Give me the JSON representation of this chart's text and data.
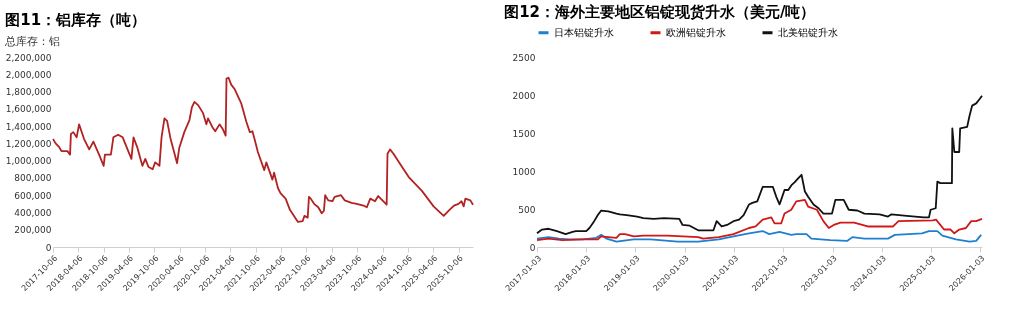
{
  "chart_data": [
    {
      "type": "line",
      "title": "图11：铝库存（吨）",
      "subtitle": "总库存：铝",
      "color": "#b22222",
      "x": [
        "2017-10-06",
        "2017-10-25",
        "2017-11-18",
        "2017-12-06",
        "2018-01-18",
        "2018-02-06",
        "2018-02-12",
        "2018-03-01",
        "2018-03-25",
        "2018-04-12",
        "2018-05-18",
        "2018-06-24",
        "2018-07-24",
        "2018-09-03",
        "2018-10-06",
        "2018-10-15",
        "2018-11-27",
        "2018-12-15",
        "2019-01-18",
        "2019-02-20",
        "2019-03-27",
        "2019-04-24",
        "2019-05-09",
        "2019-06-06",
        "2019-07-12",
        "2019-08-02",
        "2019-08-24",
        "2019-09-24",
        "2019-10-12",
        "2019-11-12",
        "2019-11-27",
        "2019-12-18",
        "2020-01-06",
        "2020-01-30",
        "2020-03-18",
        "2020-04-03",
        "2020-05-09",
        "2020-06-15",
        "2020-07-03",
        "2020-07-21",
        "2020-08-18",
        "2020-09-21",
        "2020-10-15",
        "2020-10-27",
        "2020-11-30",
        "2020-12-18",
        "2021-01-18",
        "2021-02-12",
        "2021-03-03",
        "2021-03-09",
        "2021-03-24",
        "2021-04-12",
        "2021-05-06",
        "2021-06-24",
        "2021-07-30",
        "2021-08-24",
        "2021-09-12",
        "2021-09-27",
        "2021-10-21",
        "2021-12-06",
        "2021-12-21",
        "2022-02-03",
        "2022-02-15",
        "2022-03-15",
        "2022-04-03",
        "2022-05-09",
        "2022-06-09",
        "2022-08-06",
        "2022-09-09",
        "2022-09-21",
        "2022-10-15",
        "2022-10-24",
        "2022-11-06",
        "2022-11-30",
        "2022-12-30",
        "2023-01-24",
        "2023-02-09",
        "2023-02-18",
        "2023-03-12",
        "2023-04-12",
        "2023-04-27",
        "2023-06-12",
        "2023-07-09",
        "2023-08-27",
        "2023-10-03",
        "2023-11-21",
        "2023-12-15",
        "2024-01-09",
        "2024-02-12",
        "2024-03-06",
        "2024-05-06",
        "2024-05-12",
        "2024-05-30",
        "2024-06-24",
        "2024-08-24",
        "2024-10-12",
        "2025-01-15",
        "2025-04-09",
        "2025-06-21",
        "2025-07-27",
        "2025-09-03",
        "2025-10-06",
        "2025-10-27",
        "2025-11-12",
        "2025-11-24",
        "2025-12-30",
        "2026-01-18"
      ],
      "values": [
        1250000,
        1200000,
        1160000,
        1110000,
        1110000,
        1070000,
        1310000,
        1330000,
        1270000,
        1420000,
        1250000,
        1130000,
        1220000,
        1070000,
        940000,
        1070000,
        1070000,
        1270000,
        1300000,
        1270000,
        1130000,
        1020000,
        1270000,
        1150000,
        940000,
        1020000,
        930000,
        900000,
        980000,
        940000,
        1270000,
        1490000,
        1460000,
        1260000,
        970000,
        1150000,
        1330000,
        1470000,
        1620000,
        1680000,
        1640000,
        1550000,
        1420000,
        1490000,
        1380000,
        1340000,
        1420000,
        1360000,
        1290000,
        1950000,
        1960000,
        1880000,
        1830000,
        1660000,
        1450000,
        1330000,
        1340000,
        1250000,
        1100000,
        890000,
        980000,
        780000,
        860000,
        680000,
        620000,
        560000,
        430000,
        290000,
        300000,
        360000,
        340000,
        580000,
        560000,
        500000,
        460000,
        390000,
        420000,
        600000,
        540000,
        530000,
        580000,
        600000,
        540000,
        510000,
        500000,
        480000,
        460000,
        560000,
        530000,
        590000,
        490000,
        1080000,
        1130000,
        1080000,
        930000,
        810000,
        650000,
        470000,
        360000,
        420000,
        480000,
        500000,
        530000,
        470000,
        560000,
        540000,
        490000
      ],
      "xlim": [
        "2017-10-06",
        "2026-01-18"
      ],
      "xticks": [
        "2017-10-06",
        "2018-04-06",
        "2018-10-06",
        "2019-04-06",
        "2019-10-06",
        "2020-04-06",
        "2020-10-06",
        "2021-04-06",
        "2021-10-06",
        "2022-04-06",
        "2022-10-06",
        "2023-04-06",
        "2023-10-06",
        "2024-04-06",
        "2024-10-06",
        "2025-04-06",
        "2025-10-06"
      ],
      "ylim": [
        0,
        2200000
      ],
      "yticks": [
        0,
        {
          "value": 200000,
          "label": "200,000"
        },
        {
          "value": 400000,
          "label": "400,000"
        },
        {
          "value": 600000,
          "label": "600,000"
        },
        {
          "value": 800000,
          "label": "800,000"
        },
        {
          "value": 1000000,
          "label": "1,000,000"
        },
        {
          "value": 1200000,
          "label": "1,200,000"
        },
        {
          "value": 1400000,
          "label": "1,400,000"
        },
        {
          "value": 1600000,
          "label": "1,600,000"
        },
        {
          "value": 1800000,
          "label": "1,800,000"
        },
        {
          "value": 2000000,
          "label": "2,000,000"
        },
        {
          "value": 2200000,
          "label": "2,200,000"
        }
      ],
      "grid": false,
      "legend": false,
      "line_style": "solid"
    },
    {
      "type": "line",
      "title": "图12：海外主要地区铝锭现货升水（美元/吨）",
      "legend": "top",
      "grid": false,
      "line_style": "solid",
      "xlim": [
        "2017-01-03",
        "2026-01-15"
      ],
      "xticks": [
        "2017-01-03",
        "2018-01-03",
        "2019-01-03",
        "2020-01-03",
        "2021-01-03",
        "2022-01-03",
        "2023-01-03",
        "2024-01-03",
        "2025-01-03",
        "2026-01-03"
      ],
      "ylim": [
        0,
        2500
      ],
      "yticks": [
        0,
        500,
        1000,
        1500,
        2000,
        2500
      ],
      "series": [
        {
          "name": "日本铝锭升水",
          "color": "#1f7fd0",
          "x": [
            "2017-01-03",
            "2017-03-30",
            "2017-06-15",
            "2017-08-30",
            "2017-12-09",
            "2018-03-18",
            "2018-04-24",
            "2018-06-03",
            "2018-08-15",
            "2018-12-21",
            "2019-04-24",
            "2019-11-12",
            "2020-04-12",
            "2020-09-12",
            "2020-12-30",
            "2021-04-24",
            "2021-08-03",
            "2021-09-21",
            "2021-12-06",
            "2022-03-03",
            "2022-04-09",
            "2022-06-24",
            "2022-07-30",
            "2022-12-18",
            "2023-04-21",
            "2023-05-30",
            "2023-08-27",
            "2024-02-18",
            "2024-04-09",
            "2024-10-27",
            "2024-12-18",
            "2025-02-18",
            "2025-03-27",
            "2025-07-06",
            "2025-10-15",
            "2025-12-03",
            "2026-01-09"
          ],
          "values": [
            110,
            130,
            110,
            100,
            100,
            120,
            160,
            110,
            70,
            100,
            100,
            70,
            70,
            100,
            140,
            180,
            210,
            170,
            200,
            160,
            170,
            170,
            110,
            90,
            80,
            130,
            110,
            110,
            160,
            180,
            210,
            210,
            150,
            100,
            70,
            80,
            160
          ]
        },
        {
          "name": "欧洲铝锭升水",
          "color": "#d01818",
          "x": [
            "2017-01-03",
            "2017-03-30",
            "2017-07-09",
            "2017-12-09",
            "2018-03-30",
            "2018-04-24",
            "2018-06-15",
            "2018-08-15",
            "2018-09-09",
            "2018-10-18",
            "2018-12-21",
            "2019-03-03",
            "2019-08-27",
            "2020-04-12",
            "2020-05-18",
            "2020-09-12",
            "2020-12-30",
            "2021-04-24",
            "2021-06-12",
            "2021-08-03",
            "2021-10-06",
            "2021-10-30",
            "2021-12-18",
            "2022-01-12",
            "2022-03-03",
            "2022-04-09",
            "2022-06-12",
            "2022-07-06",
            "2022-09-09",
            "2022-10-27",
            "2022-12-06",
            "2023-01-12",
            "2023-03-03",
            "2023-06-12",
            "2023-09-21",
            "2024-03-27",
            "2024-05-06",
            "2025-01-15",
            "2025-02-09",
            "2025-03-03",
            "2025-04-09",
            "2025-05-27",
            "2025-06-24",
            "2025-07-30",
            "2025-09-18",
            "2025-10-27",
            "2025-12-03",
            "2026-01-15"
          ],
          "values": [
            90,
            110,
            90,
            100,
            100,
            140,
            130,
            120,
            170,
            170,
            140,
            150,
            150,
            130,
            110,
            130,
            170,
            250,
            270,
            360,
            390,
            310,
            310,
            440,
            490,
            600,
            620,
            530,
            490,
            340,
            250,
            290,
            320,
            320,
            270,
            270,
            340,
            350,
            360,
            310,
            230,
            230,
            180,
            230,
            250,
            340,
            340,
            370
          ]
        },
        {
          "name": "北美铝锭升水",
          "color": "#111111",
          "x": [
            "2017-01-03",
            "2017-02-09",
            "2017-03-30",
            "2017-05-31",
            "2017-08-03",
            "2017-09-24",
            "2017-10-18",
            "2018-01-03",
            "2018-01-27",
            "2018-03-03",
            "2018-03-30",
            "2018-04-24",
            "2018-06-15",
            "2018-08-15",
            "2018-09-09",
            "2018-10-30",
            "2019-01-15",
            "2019-03-03",
            "2019-05-18",
            "2019-08-03",
            "2019-11-24",
            "2019-12-18",
            "2020-02-09",
            "2020-04-12",
            "2020-08-03",
            "2020-08-27",
            "2020-10-03",
            "2020-11-12",
            "2020-12-30",
            "2021-02-09",
            "2021-03-15",
            "2021-04-24",
            "2021-05-18",
            "2021-06-24",
            "2021-08-03",
            "2021-10-18",
            "2021-11-12",
            "2021-12-06",
            "2021-12-18",
            "2022-01-12",
            "2022-02-09",
            "2022-03-03",
            "2022-03-27",
            "2022-04-21",
            "2022-05-18",
            "2022-06-12",
            "2022-07-06",
            "2022-08-15",
            "2022-09-21",
            "2022-10-27",
            "2022-12-30",
            "2023-01-24",
            "2023-03-27",
            "2023-05-03",
            "2023-07-06",
            "2023-08-27",
            "2023-12-18",
            "2024-02-18",
            "2024-03-15",
            "2024-07-06",
            "2024-11-09",
            "2024-12-18",
            "2024-12-30",
            "2025-02-06",
            "2025-02-18",
            "2025-03-12",
            "2025-06-06",
            "2025-06-09",
            "2025-06-24",
            "2025-07-30",
            "2025-08-06",
            "2025-09-27",
            "2025-10-15",
            "2025-11-03",
            "2025-12-03",
            "2025-12-30",
            "2026-01-15"
          ],
          "values": [
            180,
            230,
            240,
            210,
            170,
            200,
            210,
            210,
            250,
            340,
            420,
            480,
            470,
            440,
            430,
            420,
            400,
            380,
            370,
            380,
            370,
            290,
            280,
            220,
            220,
            340,
            270,
            290,
            340,
            360,
            420,
            560,
            580,
            600,
            790,
            790,
            660,
            560,
            620,
            750,
            750,
            810,
            850,
            900,
            950,
            730,
            660,
            560,
            510,
            440,
            440,
            620,
            620,
            490,
            480,
            440,
            430,
            400,
            430,
            410,
            390,
            390,
            490,
            510,
            860,
            840,
            840,
            1560,
            1250,
            1250,
            1560,
            1580,
            1730,
            1860,
            1890,
            1950,
            1990
          ]
        }
      ]
    }
  ]
}
